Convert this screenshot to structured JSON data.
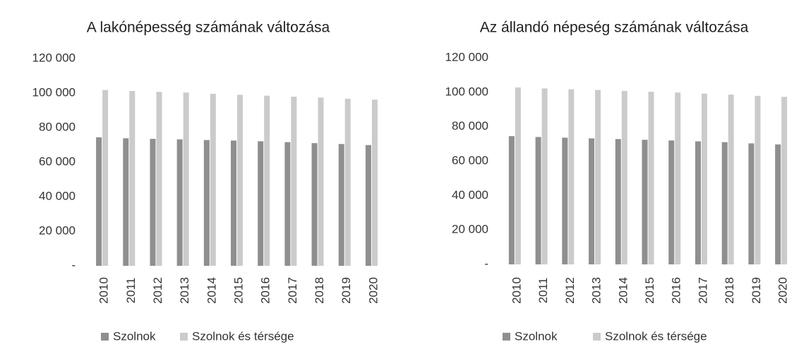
{
  "chart_data": [
    {
      "type": "bar",
      "title": "A lakónépesség számának változása",
      "categories": [
        "2010",
        "2011",
        "2012",
        "2013",
        "2014",
        "2015",
        "2016",
        "2017",
        "2018",
        "2019",
        "2020"
      ],
      "series": [
        {
          "name": "Szolnok",
          "color": "#8f8f8f",
          "values": [
            74400,
            73800,
            73500,
            73200,
            72800,
            72500,
            72100,
            71600,
            71000,
            70500,
            69900
          ]
        },
        {
          "name": "Szolnok és térsége",
          "color": "#cbcbcb",
          "values": [
            101800,
            101200,
            100700,
            100300,
            99600,
            99000,
            98500,
            97900,
            97400,
            96700,
            96200
          ]
        }
      ],
      "ylim": [
        0,
        120000
      ],
      "yticks": [
        {
          "value": 0,
          "label": "-"
        },
        {
          "value": 20000,
          "label": "20 000"
        },
        {
          "value": 40000,
          "label": "40 000"
        },
        {
          "value": 60000,
          "label": "60 000"
        },
        {
          "value": 80000,
          "label": "80 000"
        },
        {
          "value": 100000,
          "label": "100 000"
        },
        {
          "value": 120000,
          "label": "120 000"
        }
      ],
      "legend": "bottom"
    },
    {
      "type": "bar",
      "title": "Az állandó népeség számának változása",
      "categories": [
        "2010",
        "2011",
        "2012",
        "2013",
        "2014",
        "2015",
        "2016",
        "2017",
        "2018",
        "2019",
        "2020"
      ],
      "series": [
        {
          "name": "Szolnok",
          "color": "#8f8f8f",
          "values": [
            74500,
            74000,
            73600,
            73200,
            72800,
            72400,
            72000,
            71500,
            71000,
            70300,
            69700
          ]
        },
        {
          "name": "Szolnok és térsége",
          "color": "#cbcbcb",
          "values": [
            102800,
            102200,
            101700,
            101300,
            100800,
            100300,
            99800,
            99200,
            98600,
            97900,
            97300
          ]
        }
      ],
      "ylim": [
        0,
        120000
      ],
      "yticks": [
        {
          "value": 0,
          "label": "-"
        },
        {
          "value": 20000,
          "label": "20 000"
        },
        {
          "value": 40000,
          "label": "40 000"
        },
        {
          "value": 60000,
          "label": "60 000"
        },
        {
          "value": 80000,
          "label": "80 000"
        },
        {
          "value": 100000,
          "label": "100 000"
        },
        {
          "value": 120000,
          "label": "120 000"
        }
      ],
      "legend": "bottom"
    }
  ]
}
